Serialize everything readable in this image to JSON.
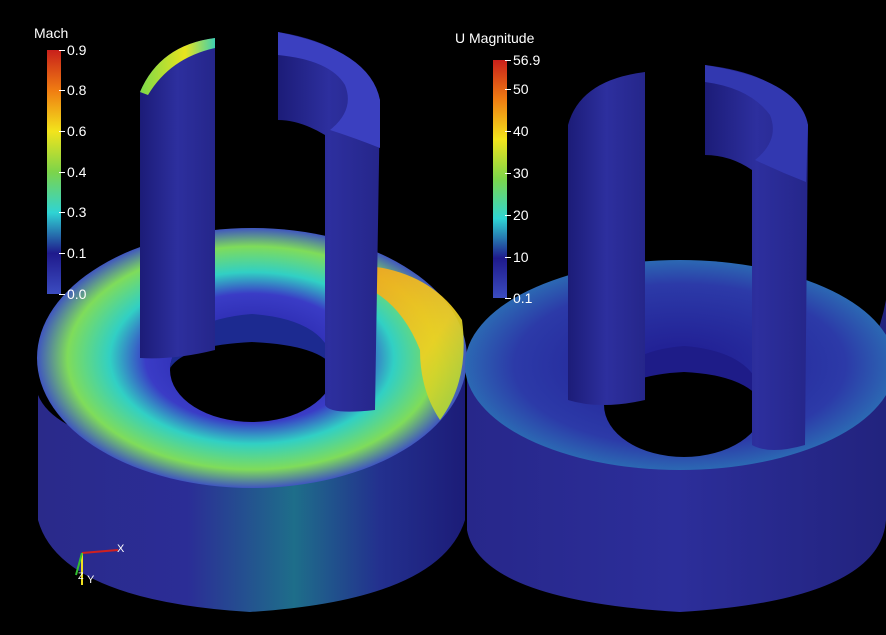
{
  "colormap": [
    "#3b4cc0",
    "#1f1a8c",
    "#2fd4d4",
    "#7cd44a",
    "#f2e41c",
    "#f07d12",
    "#c8201b"
  ],
  "legends": [
    {
      "id": "mach",
      "title": "Mach",
      "ticks": [
        "0.9",
        "0.8",
        "0.6",
        "0.4",
        "0.3",
        "0.1",
        "0.0"
      ]
    },
    {
      "id": "umag",
      "title": "U Magnitude",
      "ticks": [
        "56.9",
        "50",
        "40",
        "30",
        "20",
        "10",
        "0.1"
      ]
    }
  ],
  "axes": {
    "x_label": "X",
    "y_label": "Y",
    "z_label": "Z"
  }
}
